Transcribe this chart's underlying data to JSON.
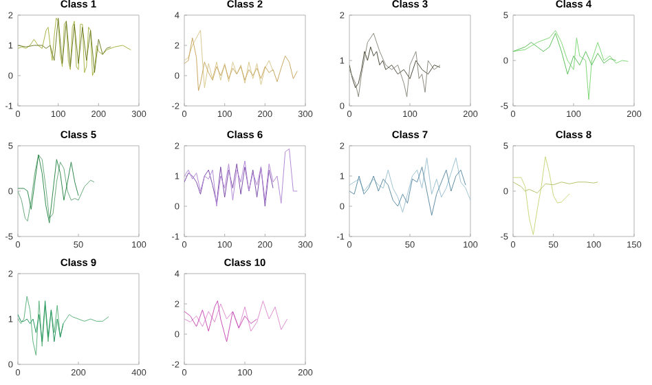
{
  "chart_data": [
    {
      "type": "line",
      "title": "Class 1",
      "xlim": [
        0,
        300
      ],
      "ylim": [
        -1,
        2
      ],
      "xticks": [
        0,
        100,
        200,
        300
      ],
      "yticks": [
        -1,
        0,
        1,
        2
      ],
      "series": [
        {
          "color": "#a9b545",
          "x": [
            0,
            10,
            20,
            30,
            40,
            50,
            60,
            70,
            75,
            80,
            85,
            90,
            95,
            100,
            105,
            110,
            115,
            120,
            125,
            130,
            135,
            140,
            145,
            150,
            155,
            160,
            165,
            170,
            175,
            180,
            185,
            190,
            195,
            200,
            210,
            220,
            240,
            260,
            280
          ],
          "values": [
            0.9,
            0.95,
            0.9,
            1.0,
            1.2,
            1.0,
            0.9,
            1.5,
            1.6,
            1.0,
            0.5,
            1.3,
            1.9,
            1.8,
            0.7,
            0.3,
            1.7,
            1.8,
            0.5,
            0.2,
            1.6,
            1.8,
            0.3,
            0.2,
            1.7,
            1.7,
            0.1,
            0.3,
            1.6,
            1.5,
            0.0,
            0.2,
            1.0,
            0.8,
            0.7,
            0.85,
            0.95,
            1.0,
            0.85
          ]
        },
        {
          "color": "#6f7d2a",
          "x": [
            0,
            20,
            40,
            60,
            70,
            80,
            90,
            100,
            110,
            120,
            130,
            140,
            150,
            160,
            170,
            180,
            190,
            200,
            210,
            220,
            230
          ],
          "values": [
            1.0,
            0.95,
            1.0,
            1.0,
            0.9,
            1.0,
            0.5,
            1.9,
            0.4,
            1.8,
            0.3,
            1.7,
            0.4,
            1.6,
            0.5,
            1.5,
            0.1,
            1.2,
            0.7,
            0.9,
            0.95
          ]
        }
      ]
    },
    {
      "type": "line",
      "title": "Class 2",
      "xlim": [
        0,
        300
      ],
      "ylim": [
        -2,
        4
      ],
      "xticks": [
        0,
        100,
        200,
        300
      ],
      "yticks": [
        -2,
        0,
        2,
        4
      ],
      "series": [
        {
          "color": "#d9c98f",
          "x": [
            0,
            10,
            20,
            30,
            40,
            45,
            50,
            60,
            70,
            80,
            90,
            100,
            110,
            120,
            130,
            140,
            150,
            160,
            170,
            180,
            190,
            200,
            210,
            220
          ],
          "values": [
            1,
            1.2,
            2.0,
            2.5,
            3.0,
            1.0,
            -0.8,
            0.8,
            -0.2,
            0.9,
            -0.3,
            0.8,
            -0.4,
            0.9,
            0.1,
            0.7,
            -0.5,
            0.9,
            -0.2,
            0.8,
            -0.6,
            0.5,
            1.0,
            0.3
          ]
        },
        {
          "color": "#c9a862",
          "x": [
            0,
            10,
            20,
            30,
            35,
            40,
            50,
            60,
            70,
            80,
            90,
            100,
            110,
            120,
            130,
            140,
            150,
            160,
            170,
            180,
            190,
            200,
            210,
            220,
            230,
            240,
            250,
            260,
            270,
            280
          ],
          "values": [
            0.8,
            1.0,
            2.5,
            1.2,
            -1.0,
            -0.5,
            0.9,
            0.2,
            -0.3,
            0.6,
            0.0,
            0.7,
            -0.2,
            0.5,
            0.1,
            0.6,
            -0.3,
            0.4,
            0.0,
            0.5,
            -0.2,
            0.6,
            0.2,
            0.4,
            -0.4,
            0.5,
            1.3,
            0.9,
            -0.2,
            0.3
          ]
        }
      ]
    },
    {
      "type": "line",
      "title": "Class 3",
      "xlim": [
        0,
        200
      ],
      "ylim": [
        0,
        2
      ],
      "xticks": [
        0,
        100,
        200
      ],
      "yticks": [
        0,
        1,
        2
      ],
      "series": [
        {
          "color": "#4a4a38",
          "x": [
            0,
            5,
            10,
            15,
            20,
            25,
            30,
            35,
            40,
            45,
            50,
            55,
            60,
            70,
            80,
            90,
            100,
            110,
            120,
            130,
            140,
            150
          ],
          "values": [
            0.9,
            0.6,
            0.4,
            0.5,
            0.8,
            1.2,
            1.0,
            1.3,
            1.1,
            1.2,
            0.9,
            1.0,
            0.8,
            0.9,
            0.7,
            0.8,
            0.6,
            1.0,
            0.8,
            0.7,
            0.9,
            0.85
          ]
        },
        {
          "color": "#8c8a7e",
          "x": [
            0,
            10,
            15,
            20,
            30,
            40,
            50,
            60,
            70,
            80,
            90,
            95,
            100,
            110,
            115,
            120,
            125,
            130,
            140,
            150
          ],
          "values": [
            0.8,
            0.5,
            0.2,
            0.7,
            1.4,
            1.6,
            1.2,
            0.9,
            0.8,
            0.9,
            0.5,
            0.2,
            0.9,
            1.2,
            0.6,
            0.7,
            0.3,
            1.0,
            0.8,
            0.9
          ]
        }
      ]
    },
    {
      "type": "line",
      "title": "Class 4",
      "xlim": [
        0,
        200
      ],
      "ylim": [
        -5,
        5
      ],
      "xticks": [
        0,
        100,
        200
      ],
      "yticks": [
        -5,
        0,
        5
      ],
      "series": [
        {
          "color": "#7fd877",
          "x": [
            0,
            20,
            40,
            60,
            70,
            80,
            90,
            100,
            105,
            110,
            120,
            125,
            130,
            140,
            150,
            160,
            170,
            180,
            190
          ],
          "values": [
            1.0,
            1.2,
            2.0,
            2.5,
            3.3,
            2.0,
            0.0,
            -1.0,
            2.5,
            0.5,
            0.0,
            -4.3,
            0.0,
            2.0,
            0.0,
            0.5,
            -0.3,
            0.0,
            -0.1
          ]
        },
        {
          "color": "#5cc05a",
          "x": [
            0,
            20,
            30,
            40,
            50,
            60,
            70,
            80,
            90,
            100,
            110,
            120,
            130,
            140,
            150,
            160,
            170
          ],
          "values": [
            1.0,
            1.5,
            2.0,
            1.5,
            1.0,
            1.5,
            3.0,
            1.0,
            -1.5,
            0.5,
            -0.5,
            1.0,
            -0.5,
            0.8,
            -0.3,
            0.2,
            0.0
          ]
        }
      ]
    },
    {
      "type": "line",
      "title": "Class 5",
      "xlim": [
        0,
        100
      ],
      "ylim": [
        -5,
        5
      ],
      "xticks": [
        0,
        50,
        100
      ],
      "yticks": [
        -5,
        0,
        5
      ],
      "series": [
        {
          "color": "#6aab7c",
          "x": [
            0,
            3,
            6,
            8,
            11,
            14,
            17,
            20,
            23,
            26,
            29,
            32,
            35,
            38,
            41,
            44,
            47,
            50,
            55,
            60,
            63
          ],
          "values": [
            0.0,
            -1.0,
            -3.0,
            -3.3,
            -1.0,
            2.0,
            4.0,
            3.5,
            0.5,
            -3.0,
            -2.5,
            1.0,
            3.2,
            2.5,
            0.0,
            -1.0,
            -0.8,
            -1.0,
            0.5,
            1.2,
            1.0
          ]
        },
        {
          "color": "#2f8a4c",
          "x": [
            0,
            5,
            8,
            11,
            14,
            17,
            20,
            23,
            26,
            29,
            32,
            35,
            38,
            41,
            44,
            47,
            50
          ],
          "values": [
            0.3,
            0.3,
            0.0,
            -2.0,
            1.0,
            4.0,
            2.0,
            -1.5,
            -3.5,
            0.0,
            3.5,
            2.0,
            -1.0,
            1.0,
            3.2,
            1.0,
            -0.5
          ]
        }
      ]
    },
    {
      "type": "line",
      "title": "Class 6",
      "xlim": [
        0,
        300
      ],
      "ylim": [
        -1,
        2
      ],
      "xticks": [
        0,
        100,
        200,
        300
      ],
      "yticks": [
        -1,
        0,
        1,
        2
      ],
      "series": [
        {
          "color": "#7a4aa8",
          "x": [
            0,
            10,
            20,
            30,
            40,
            50,
            60,
            70,
            80,
            90,
            100,
            110,
            120,
            130,
            140,
            150,
            160,
            170,
            180,
            190,
            200,
            210,
            220
          ],
          "values": [
            0.8,
            1.1,
            1.0,
            0.8,
            0.4,
            1.0,
            1.2,
            0.7,
            0.1,
            1.3,
            0.3,
            1.2,
            0.6,
            1.4,
            0.4,
            1.3,
            0.5,
            1.2,
            0.3,
            1.3,
            0.0,
            1.2,
            0.6
          ]
        },
        {
          "color": "#b48ad6",
          "x": [
            0,
            10,
            20,
            30,
            40,
            50,
            60,
            70,
            80,
            90,
            100,
            110,
            120,
            130,
            140,
            150,
            160,
            170,
            180,
            190,
            200,
            210,
            220,
            230,
            240,
            250,
            260,
            270,
            280
          ],
          "values": [
            1.0,
            1.2,
            0.9,
            1.1,
            0.5,
            1.0,
            0.9,
            1.2,
            0.0,
            1.0,
            0.6,
            1.4,
            0.2,
            1.2,
            0.8,
            1.5,
            0.5,
            1.1,
            0.7,
            1.3,
            0.2,
            1.4,
            0.8,
            1.0,
            0.1,
            1.8,
            1.9,
            0.5,
            0.5
          ]
        }
      ]
    },
    {
      "type": "line",
      "title": "Class 7",
      "xlim": [
        0,
        100
      ],
      "ylim": [
        -1,
        2
      ],
      "xticks": [
        0,
        50,
        100
      ],
      "yticks": [
        -1,
        0,
        1,
        2
      ],
      "series": [
        {
          "color": "#9ec3d3",
          "x": [
            0,
            4,
            8,
            12,
            16,
            20,
            24,
            28,
            32,
            36,
            40,
            44,
            48,
            52,
            56,
            60,
            64,
            68,
            72,
            76,
            80,
            84,
            88,
            92,
            96,
            100
          ],
          "values": [
            0.7,
            0.8,
            0.9,
            0.5,
            0.7,
            0.9,
            0.7,
            0.6,
            1.2,
            0.6,
            0.3,
            -0.2,
            0.4,
            1.0,
            1.2,
            0.6,
            1.6,
            0.4,
            0.9,
            0.3,
            0.6,
            1.1,
            1.6,
            0.8,
            0.6,
            0.2
          ]
        },
        {
          "color": "#5f8ea6",
          "x": [
            0,
            4,
            8,
            12,
            16,
            20,
            24,
            28,
            32,
            36,
            40,
            44,
            48,
            52,
            56,
            60,
            64,
            68,
            72,
            76,
            80,
            84,
            88,
            92,
            96
          ],
          "values": [
            0.5,
            0.4,
            1.0,
            0.4,
            0.6,
            1.0,
            0.5,
            0.9,
            0.7,
            0.2,
            0.0,
            0.4,
            0.1,
            0.9,
            0.8,
            1.3,
            0.5,
            -0.3,
            0.4,
            0.8,
            1.2,
            0.5,
            1.0,
            1.2,
            0.7
          ]
        }
      ]
    },
    {
      "type": "line",
      "title": "Class 8",
      "xlim": [
        0,
        150
      ],
      "ylim": [
        -5,
        5
      ],
      "xticks": [
        0,
        50,
        100,
        150
      ],
      "yticks": [
        -5,
        0,
        5
      ],
      "series": [
        {
          "color": "#c9d77c",
          "x": [
            0,
            10,
            15,
            20,
            25,
            30,
            35,
            40,
            45,
            50,
            55,
            60,
            70
          ],
          "values": [
            1.5,
            1.5,
            0.5,
            -3.0,
            -4.8,
            -2.0,
            0.5,
            3.8,
            2.0,
            -0.5,
            -1.3,
            -1.2,
            -0.3
          ]
        },
        {
          "color": "#b5c46a",
          "x": [
            0,
            10,
            15,
            20,
            30,
            40,
            50,
            60,
            70,
            80,
            90,
            100,
            105
          ],
          "values": [
            1.0,
            0.5,
            0.0,
            0.2,
            -0.2,
            0.8,
            0.7,
            1.0,
            0.8,
            1.0,
            1.0,
            0.9,
            1.0
          ]
        }
      ]
    },
    {
      "type": "line",
      "title": "Class 9",
      "xlim": [
        0,
        400
      ],
      "ylim": [
        0,
        2
      ],
      "xticks": [
        0,
        200,
        400
      ],
      "yticks": [
        0,
        1,
        2
      ],
      "series": [
        {
          "color": "#5fb47e",
          "x": [
            0,
            10,
            20,
            30,
            40,
            50,
            60,
            70,
            80,
            90,
            100,
            110,
            120,
            130,
            140,
            150,
            160,
            170,
            180,
            200,
            220,
            240,
            260,
            280,
            300
          ],
          "values": [
            1.0,
            0.9,
            1.0,
            1.5,
            1.2,
            0.5,
            0.2,
            1.4,
            0.4,
            1.3,
            0.5,
            1.2,
            0.7,
            1.3,
            0.6,
            0.9,
            1.0,
            1.1,
            1.05,
            1.0,
            0.95,
            1.0,
            0.95,
            0.95,
            1.05
          ]
        },
        {
          "color": "#23955a",
          "x": [
            0,
            10,
            20,
            30,
            40,
            50,
            60,
            70,
            80,
            90,
            100,
            110,
            120,
            130,
            140,
            150
          ],
          "values": [
            1.1,
            0.95,
            0.95,
            1.0,
            0.9,
            1.0,
            0.7,
            1.1,
            0.5,
            1.4,
            0.6,
            1.2,
            0.5,
            1.0,
            0.6,
            0.9
          ]
        }
      ]
    },
    {
      "type": "line",
      "title": "Class 10",
      "xlim": [
        0,
        200
      ],
      "ylim": [
        -2,
        4
      ],
      "xticks": [
        0,
        100,
        200
      ],
      "yticks": [
        -2,
        0,
        2,
        4
      ],
      "series": [
        {
          "color": "#e08fd2",
          "x": [
            0,
            10,
            20,
            30,
            40,
            50,
            60,
            70,
            80,
            90,
            100,
            110,
            120,
            130,
            140,
            150,
            160,
            170
          ],
          "values": [
            1.0,
            0.8,
            1.2,
            0.5,
            1.5,
            0.8,
            2.0,
            1.0,
            1.5,
            0.4,
            1.8,
            0.2,
            0.8,
            2.2,
            1.0,
            1.8,
            0.3,
            1.0
          ]
        },
        {
          "color": "#c94fb6",
          "x": [
            0,
            10,
            20,
            30,
            40,
            50,
            55,
            60,
            70,
            80,
            90,
            100,
            110,
            120
          ],
          "values": [
            1.5,
            1.2,
            0.5,
            1.6,
            0.2,
            1.8,
            2.2,
            1.0,
            -0.5,
            1.5,
            0.4,
            1.2,
            0.7,
            1.0
          ]
        }
      ]
    }
  ]
}
